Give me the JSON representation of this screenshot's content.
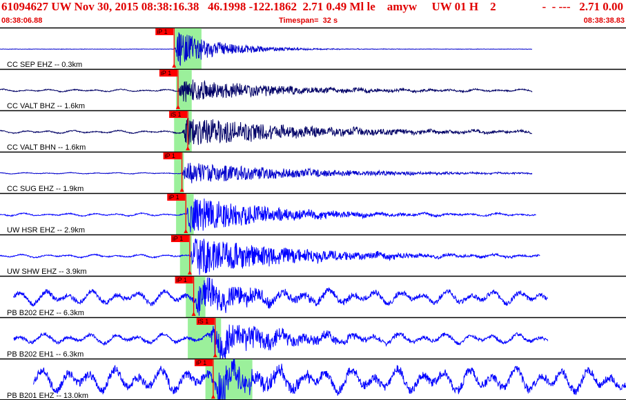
{
  "header": {
    "title": "61094627 UW Nov 30, 2015 08:38:16.38   46.1998 -122.1862  2.71 0.49 Ml le    amyw     UW 01 H    2",
    "flags": "-  - ---   2.71 0.00",
    "start_time": "08:38:06.88",
    "timespan_label": "Timespan=  32 s",
    "end_time": "08:38:38.83"
  },
  "colors": {
    "title": "#e00000",
    "pick_marker": "#ff0000",
    "window_highlight": "#90ee90",
    "trace_blue": "#0000ff",
    "trace_dark": "#000080",
    "separator": "#000000"
  },
  "chart_data": {
    "type": "line",
    "x_units": "s",
    "start_time": "08:38:06.88",
    "end_time": "08:38:38.83",
    "timespan_s": 32,
    "grid": false,
    "traces": [
      {
        "label": "CC SEP EHZ -- 0.3km",
        "color": "#0000cc",
        "trace_start_s": 0.0,
        "trace_end_s": 27.2,
        "p_pick_label": "iP 1",
        "p_pick_s": 8.9,
        "s_pick_label": "",
        "s_pick_s": null,
        "window": [
          8.9,
          10.3
        ],
        "amplitude": 0.98,
        "noise": 0.0,
        "decay_s": 2.2
      },
      {
        "label": "CC VALT BHZ -- 1.6km",
        "color": "#000066",
        "trace_start_s": 0.0,
        "trace_end_s": 27.2,
        "p_pick_label": "iP 1",
        "p_pick_s": 9.1,
        "s_pick_label": "",
        "s_pick_s": null,
        "window": [
          9.0,
          9.8
        ],
        "amplitude": 0.6,
        "noise": 0.06,
        "decay_s": 5.0
      },
      {
        "label": "CC VALT BHN -- 1.6km",
        "color": "#000066",
        "trace_start_s": 0.0,
        "trace_end_s": 27.2,
        "p_pick_label": "",
        "p_pick_s": null,
        "s_pick_label": "iS 1",
        "s_pick_s": 9.6,
        "window": [
          8.9,
          9.8
        ],
        "amplitude": 0.75,
        "noise": 0.07,
        "decay_s": 6.0
      },
      {
        "label": "CC SUG EHZ -- 1.9km",
        "color": "#0000cc",
        "trace_start_s": 0.0,
        "trace_end_s": 27.2,
        "p_pick_label": "iP 1",
        "p_pick_s": 9.3,
        "s_pick_label": "",
        "s_pick_s": null,
        "window": [
          8.9,
          9.4
        ],
        "amplitude": 0.55,
        "noise": 0.03,
        "decay_s": 6.0
      },
      {
        "label": "UW HSR EHZ -- 2.9km",
        "color": "#0000ff",
        "trace_start_s": 0.0,
        "trace_end_s": 27.4,
        "p_pick_label": "iP 1",
        "p_pick_s": 9.5,
        "s_pick_label": "",
        "s_pick_s": null,
        "window": [
          9.0,
          9.9
        ],
        "amplitude": 1.0,
        "noise": 0.07,
        "decay_s": 4.0
      },
      {
        "label": "UW SHW EHZ -- 3.9km",
        "color": "#0000ff",
        "trace_start_s": 0.0,
        "trace_end_s": 27.6,
        "p_pick_label": "iP 1",
        "p_pick_s": 9.7,
        "s_pick_label": "",
        "s_pick_s": null,
        "window": [
          9.2,
          9.8
        ],
        "amplitude": 1.0,
        "noise": 0.08,
        "decay_s": 5.0
      },
      {
        "label": "PB B202 EHZ -- 6.3km",
        "color": "#0000ff",
        "trace_start_s": 0.7,
        "trace_end_s": 28.0,
        "p_pick_label": "iP 1",
        "p_pick_s": 9.9,
        "s_pick_label": "",
        "s_pick_s": null,
        "window": [
          9.5,
          10.5
        ],
        "amplitude": 0.9,
        "noise": 0.35,
        "decay_s": 3.0
      },
      {
        "label": "PB B202 EH1 -- 6.3km",
        "color": "#0000ff",
        "trace_start_s": 0.7,
        "trace_end_s": 28.0,
        "p_pick_label": "",
        "p_pick_s": null,
        "s_pick_label": "iS 1",
        "s_pick_s": 11.0,
        "window": [
          9.6,
          11.3
        ],
        "amplitude": 0.95,
        "noise": 0.25,
        "decay_s": 3.5
      },
      {
        "label": "PB B201 EHZ -- 13.0km",
        "color": "#0000ff",
        "trace_start_s": 1.7,
        "trace_end_s": 32.0,
        "p_pick_label": "iP 1",
        "p_pick_s": 10.9,
        "s_pick_label": "",
        "s_pick_s": null,
        "window": [
          10.5,
          12.9
        ],
        "amplitude": 1.0,
        "noise": 0.6,
        "decay_s": 2.5
      }
    ]
  }
}
